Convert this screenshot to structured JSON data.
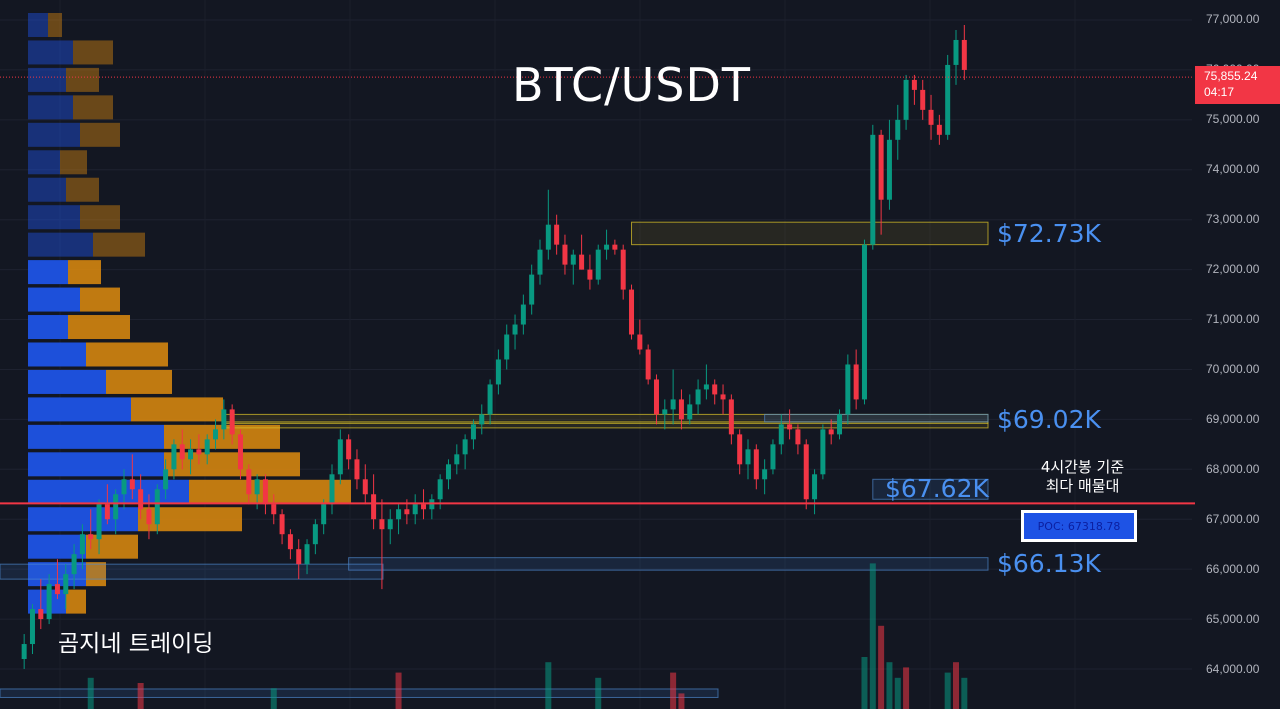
{
  "title": "BTC/USDT",
  "watermark": "곰지네 트레이딩",
  "note": {
    "line1": "4시간봉 기준",
    "line2": "최다 매물대"
  },
  "poc": {
    "label": "POC: 67318.78",
    "price": 67318.78
  },
  "current_price": {
    "price": "75,855.24",
    "countdown": "04:17",
    "value": 75855.24
  },
  "levels": [
    {
      "label": "$72.73K",
      "price": 72730
    },
    {
      "label": "$69.02K",
      "price": 69020
    },
    {
      "label": "$67.62K",
      "price": 67620
    },
    {
      "label": "$66.13K",
      "price": 66130
    }
  ],
  "price_ticks": [
    "77,000.00",
    "76,000.00",
    "75,000.00",
    "74,000.00",
    "73,000.00",
    "72,000.00",
    "71,000.00",
    "70,000.00",
    "69,000.00",
    "68,000.00",
    "67,000.00",
    "66,000.00",
    "65,000.00",
    "64,000.00"
  ],
  "colors": {
    "up": "#089981",
    "down": "#f23645",
    "background": "#131722",
    "poc_line": "#f23645",
    "volume_buy": "#1e53e5",
    "volume_sell": "#d4850f",
    "level_text": "#4a90f0"
  },
  "chart_data": {
    "type": "candlestick",
    "ylim": [
      63400,
      77300
    ],
    "price_scale": [
      64000,
      65000,
      66000,
      67000,
      68000,
      69000,
      70000,
      71000,
      72000,
      73000,
      74000,
      75000,
      76000,
      77000
    ],
    "candles": [
      [
        64200,
        64700,
        64000,
        64500
      ],
      [
        64500,
        65300,
        64300,
        65200
      ],
      [
        65200,
        65800,
        64800,
        65000
      ],
      [
        65000,
        65900,
        64900,
        65700
      ],
      [
        65700,
        66200,
        65400,
        65500
      ],
      [
        65500,
        66100,
        65200,
        65900
      ],
      [
        65900,
        66500,
        65600,
        66300
      ],
      [
        66300,
        66900,
        66000,
        66700
      ],
      [
        66700,
        67200,
        66400,
        66600
      ],
      [
        66600,
        67400,
        66300,
        67300
      ],
      [
        67300,
        67700,
        66900,
        67000
      ],
      [
        67000,
        67600,
        66700,
        67500
      ],
      [
        67500,
        68000,
        67200,
        67800
      ],
      [
        67800,
        68300,
        67400,
        67600
      ],
      [
        67600,
        67900,
        67000,
        67200
      ],
      [
        67200,
        67500,
        66600,
        66900
      ],
      [
        66900,
        67700,
        66700,
        67600
      ],
      [
        67600,
        68200,
        67400,
        68000
      ],
      [
        68000,
        68600,
        67800,
        68500
      ],
      [
        68500,
        68800,
        68000,
        68200
      ],
      [
        68200,
        68600,
        67900,
        68400
      ],
      [
        68400,
        68700,
        68100,
        68300
      ],
      [
        68300,
        68700,
        68100,
        68600
      ],
      [
        68600,
        69000,
        68400,
        68800
      ],
      [
        68800,
        69400,
        68600,
        69200
      ],
      [
        69200,
        69300,
        68500,
        68700
      ],
      [
        68700,
        68800,
        67800,
        68000
      ],
      [
        68000,
        68100,
        67300,
        67500
      ],
      [
        67500,
        67900,
        67200,
        67800
      ],
      [
        67800,
        67900,
        67100,
        67300
      ],
      [
        67300,
        67500,
        66900,
        67100
      ],
      [
        67100,
        67200,
        66500,
        66700
      ],
      [
        66700,
        66800,
        66200,
        66400
      ],
      [
        66400,
        66600,
        65800,
        66100
      ],
      [
        66100,
        66600,
        65900,
        66500
      ],
      [
        66500,
        67000,
        66300,
        66900
      ],
      [
        66900,
        67400,
        66700,
        67300
      ],
      [
        67300,
        68100,
        67100,
        67900
      ],
      [
        67900,
        68800,
        67700,
        68600
      ],
      [
        68600,
        68700,
        68000,
        68200
      ],
      [
        68200,
        68400,
        67600,
        67800
      ],
      [
        67800,
        68100,
        67300,
        67500
      ],
      [
        67500,
        67900,
        66800,
        67000
      ],
      [
        67000,
        67400,
        65600,
        66800
      ],
      [
        66800,
        67200,
        66500,
        67000
      ],
      [
        67000,
        67300,
        66700,
        67200
      ],
      [
        67200,
        67400,
        66900,
        67100
      ],
      [
        67100,
        67500,
        66900,
        67300
      ],
      [
        67300,
        67600,
        67000,
        67200
      ],
      [
        67200,
        67500,
        67000,
        67400
      ],
      [
        67400,
        67900,
        67200,
        67800
      ],
      [
        67800,
        68200,
        67600,
        68100
      ],
      [
        68100,
        68500,
        67900,
        68300
      ],
      [
        68300,
        68700,
        68000,
        68600
      ],
      [
        68600,
        69000,
        68400,
        68900
      ],
      [
        68900,
        69300,
        68700,
        69100
      ],
      [
        69100,
        69800,
        68900,
        69700
      ],
      [
        69700,
        70400,
        69500,
        70200
      ],
      [
        70200,
        70900,
        70000,
        70700
      ],
      [
        70700,
        71100,
        70400,
        70900
      ],
      [
        70900,
        71500,
        70700,
        71300
      ],
      [
        71300,
        72100,
        71100,
        71900
      ],
      [
        71900,
        72600,
        71700,
        72400
      ],
      [
        72400,
        73600,
        72200,
        72900
      ],
      [
        72900,
        73100,
        72300,
        72500
      ],
      [
        72500,
        72700,
        71900,
        72100
      ],
      [
        72100,
        72400,
        71700,
        72300
      ],
      [
        72300,
        72700,
        72000,
        72000
      ],
      [
        72000,
        72300,
        71600,
        71800
      ],
      [
        71800,
        72500,
        71700,
        72400
      ],
      [
        72400,
        72800,
        72200,
        72500
      ],
      [
        72500,
        72600,
        72300,
        72400
      ],
      [
        72400,
        72500,
        71400,
        71600
      ],
      [
        71600,
        71700,
        70600,
        70700
      ],
      [
        70700,
        71000,
        70300,
        70400
      ],
      [
        70400,
        70500,
        69700,
        69800
      ],
      [
        69800,
        69900,
        68900,
        69100
      ],
      [
        69100,
        69400,
        68800,
        69200
      ],
      [
        69200,
        70000,
        68900,
        69400
      ],
      [
        69400,
        69600,
        68800,
        69000
      ],
      [
        69000,
        69500,
        68900,
        69300
      ],
      [
        69300,
        69800,
        69100,
        69600
      ],
      [
        69600,
        70100,
        69400,
        69700
      ],
      [
        69700,
        69800,
        69300,
        69500
      ],
      [
        69500,
        69700,
        69100,
        69400
      ],
      [
        69400,
        69500,
        68500,
        68700
      ],
      [
        68700,
        68800,
        67900,
        68100
      ],
      [
        68100,
        68600,
        67800,
        68400
      ],
      [
        68400,
        68500,
        67600,
        67800
      ],
      [
        67800,
        68200,
        67500,
        68000
      ],
      [
        68000,
        68600,
        67900,
        68500
      ],
      [
        68500,
        69100,
        68300,
        68900
      ],
      [
        68900,
        69200,
        68600,
        68800
      ],
      [
        68800,
        68900,
        68300,
        68500
      ],
      [
        68500,
        68600,
        67200,
        67400
      ],
      [
        67400,
        68000,
        67100,
        67900
      ],
      [
        67900,
        68900,
        67800,
        68800
      ],
      [
        68800,
        69000,
        68500,
        68700
      ],
      [
        68700,
        69200,
        68600,
        69100
      ],
      [
        69100,
        70300,
        68900,
        70100
      ],
      [
        70100,
        70400,
        69200,
        69400
      ],
      [
        69400,
        72600,
        69300,
        72500
      ],
      [
        72500,
        74900,
        72400,
        74700
      ],
      [
        74700,
        74800,
        72700,
        73400
      ],
      [
        73400,
        75000,
        73200,
        74600
      ],
      [
        74600,
        75300,
        74200,
        75000
      ],
      [
        75000,
        75900,
        74800,
        75800
      ],
      [
        75800,
        75900,
        75300,
        75600
      ],
      [
        75600,
        75800,
        75000,
        75200
      ],
      [
        75200,
        75500,
        74600,
        74900
      ],
      [
        74900,
        75100,
        74500,
        74700
      ],
      [
        74700,
        76300,
        74600,
        76100
      ],
      [
        76100,
        76800,
        75700,
        76600
      ],
      [
        76600,
        76900,
        75800,
        76000
      ]
    ],
    "volume_profile": {
      "rows": [
        {
          "price": 76900,
          "buy": 20,
          "sell": 14
        },
        {
          "price": 76350,
          "buy": 45,
          "sell": 40
        },
        {
          "price": 75800,
          "buy": 38,
          "sell": 33
        },
        {
          "price": 75250,
          "buy": 45,
          "sell": 40
        },
        {
          "price": 74700,
          "buy": 52,
          "sell": 40
        },
        {
          "price": 74150,
          "buy": 32,
          "sell": 27
        },
        {
          "price": 73600,
          "buy": 38,
          "sell": 33
        },
        {
          "price": 73050,
          "buy": 52,
          "sell": 40
        },
        {
          "price": 72500,
          "buy": 65,
          "sell": 52
        },
        {
          "price": 71950,
          "buy": 40,
          "sell": 33
        },
        {
          "price": 71400,
          "buy": 52,
          "sell": 40
        },
        {
          "price": 70850,
          "buy": 40,
          "sell": 62
        },
        {
          "price": 70300,
          "buy": 58,
          "sell": 82
        },
        {
          "price": 69750,
          "buy": 78,
          "sell": 66
        },
        {
          "price": 69200,
          "buy": 103,
          "sell": 92
        },
        {
          "price": 68650,
          "buy": 136,
          "sell": 116
        },
        {
          "price": 68100,
          "buy": 136,
          "sell": 136
        },
        {
          "price": 67550,
          "buy": 161,
          "sell": 162
        },
        {
          "price": 67000,
          "buy": 110,
          "sell": 104
        },
        {
          "price": 66450,
          "buy": 58,
          "sell": 52
        },
        {
          "price": 65900,
          "buy": 58,
          "sell": 20
        },
        {
          "price": 65350,
          "buy": 38,
          "sell": 20
        }
      ]
    },
    "volume_bars": [
      {
        "index": 8,
        "vol": 0.6,
        "dir": "up"
      },
      {
        "index": 14,
        "vol": 0.5,
        "dir": "down"
      },
      {
        "index": 30,
        "vol": 0.4,
        "dir": "up"
      },
      {
        "index": 45,
        "vol": 0.7,
        "dir": "down"
      },
      {
        "index": 63,
        "vol": 0.9,
        "dir": "up"
      },
      {
        "index": 69,
        "vol": 0.6,
        "dir": "up"
      },
      {
        "index": 78,
        "vol": 0.7,
        "dir": "down"
      },
      {
        "index": 79,
        "vol": 0.3,
        "dir": "down"
      },
      {
        "index": 101,
        "vol": 1.0,
        "dir": "up"
      },
      {
        "index": 102,
        "vol": 2.8,
        "dir": "up"
      },
      {
        "index": 103,
        "vol": 1.6,
        "dir": "down"
      },
      {
        "index": 104,
        "vol": 0.9,
        "dir": "up"
      },
      {
        "index": 105,
        "vol": 0.6,
        "dir": "up"
      },
      {
        "index": 106,
        "vol": 0.8,
        "dir": "down"
      },
      {
        "index": 111,
        "vol": 0.7,
        "dir": "up"
      },
      {
        "index": 112,
        "vol": 0.9,
        "dir": "down"
      },
      {
        "index": 113,
        "vol": 0.6,
        "dir": "up"
      }
    ],
    "zones": [
      {
        "top": 72950,
        "bottom": 72500,
        "from": 73,
        "color": "yellow"
      },
      {
        "top": 69100,
        "bottom": 68920,
        "from": 24,
        "color": "yellow"
      },
      {
        "top": 68950,
        "bottom": 68830,
        "from": 24,
        "color": "yellow"
      },
      {
        "top": 69100,
        "bottom": 68950,
        "from": 89,
        "color": "blue"
      },
      {
        "top": 67800,
        "bottom": 67400,
        "from": 102,
        "color": "blue"
      },
      {
        "top": 66230,
        "bottom": 65980,
        "from": 39,
        "color": "blue"
      },
      {
        "top": 66100,
        "bottom": 65800,
        "from": 0,
        "color": "blue"
      },
      {
        "top": 63600,
        "bottom": 63430,
        "from": 0,
        "color": "blue"
      }
    ]
  }
}
